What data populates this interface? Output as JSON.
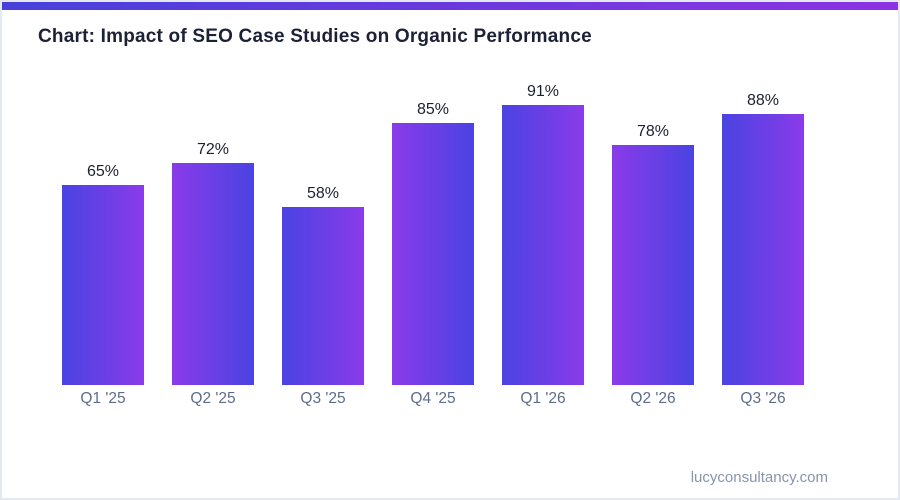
{
  "page": {
    "title": "Chart: Impact of SEO Case Studies on Organic Performance",
    "footer": "lucyconsultancy.com",
    "accent_gradient_start": "#4840d9",
    "accent_gradient_end": "#8c32e4",
    "border_color": "#e3e8f1"
  },
  "chart_data": {
    "type": "bar",
    "title": "Chart: Impact of SEO Case Studies on Organic Performance",
    "categories": [
      "Q1 '25",
      "Q2 '25",
      "Q3 '25",
      "Q4 '25",
      "Q1 '26",
      "Q2 '26",
      "Q3 '26"
    ],
    "values": [
      65,
      72,
      58,
      85,
      91,
      78,
      88
    ],
    "value_labels": [
      "65%",
      "72%",
      "58%",
      "85%",
      "91%",
      "78%",
      "88%"
    ],
    "xlabel": "",
    "ylabel": "",
    "ylim": [
      0,
      100
    ],
    "unit": "%",
    "grid": false,
    "legend": false,
    "bar_gradient_indigo": "#4a43e2",
    "bar_gradient_violet": "#8a3be9",
    "gradient_note": "horizontal gradient, direction alternates per bar starting indigo-to-violet",
    "category_label_color": "#5e6d8a",
    "value_label_color": "#1b2131"
  }
}
